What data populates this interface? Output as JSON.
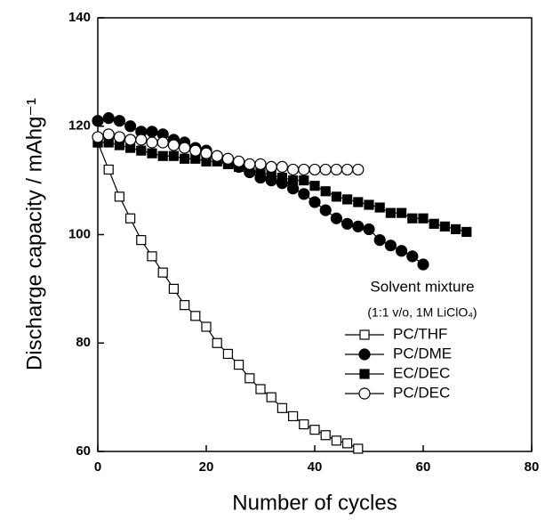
{
  "chart_data": {
    "type": "line",
    "x_label": "Number of cycles",
    "y_label": "Discharge capacity / mAhg⁻¹",
    "legend_title": "Solvent mixture",
    "legend_subtitle": "(1:1 v/o, 1M LiClO₄)",
    "xlim": [
      0,
      80
    ],
    "xticks": [
      0,
      20,
      40,
      60,
      80
    ],
    "ylim": [
      60,
      140
    ],
    "yticks": [
      60,
      80,
      100,
      120,
      140
    ],
    "legend": "lower right",
    "series": [
      {
        "name": "PC/THF",
        "color": "#000000",
        "marker": "square",
        "filled": false,
        "x": [
          0,
          2,
          4,
          6,
          8,
          10,
          12,
          14,
          16,
          18,
          20,
          22,
          24,
          26,
          28,
          30,
          32,
          34,
          36,
          38,
          40,
          42,
          44,
          46,
          48
        ],
        "values": [
          117,
          112,
          107,
          103,
          99,
          96,
          93,
          90,
          87,
          85,
          83,
          80,
          78,
          76,
          73.5,
          71.5,
          70,
          68,
          66.5,
          65,
          64,
          63,
          62,
          61.5,
          60.5
        ]
      },
      {
        "name": "PC/DME",
        "color": "#000000",
        "marker": "circle",
        "filled": true,
        "x": [
          0,
          2,
          4,
          6,
          8,
          10,
          12,
          14,
          16,
          18,
          20,
          22,
          24,
          26,
          28,
          30,
          32,
          34,
          36,
          38,
          40,
          42,
          44,
          46,
          48,
          50,
          52,
          54,
          56,
          58,
          60
        ],
        "values": [
          121,
          121.5,
          121,
          120,
          119,
          119,
          118.5,
          117.5,
          117,
          116,
          115.5,
          114.5,
          113.5,
          112.5,
          111.5,
          110.5,
          110,
          109.5,
          108.5,
          107.5,
          106,
          104.5,
          103,
          102,
          101.5,
          101,
          99,
          98,
          97,
          96,
          94.5
        ]
      },
      {
        "name": "EC/DEC",
        "color": "#000000",
        "marker": "square",
        "filled": true,
        "x": [
          0,
          2,
          4,
          6,
          8,
          10,
          12,
          14,
          16,
          18,
          20,
          22,
          24,
          26,
          28,
          30,
          32,
          34,
          36,
          38,
          40,
          42,
          44,
          46,
          48,
          50,
          52,
          54,
          56,
          58,
          60,
          62,
          64,
          66,
          68
        ],
        "values": [
          117,
          117,
          116.5,
          116,
          115.5,
          115,
          114.5,
          114.5,
          114,
          114,
          113.5,
          113.5,
          113,
          112.5,
          112,
          111.5,
          111,
          110.5,
          110,
          110,
          109,
          108,
          107,
          106.5,
          106,
          105.5,
          105,
          104,
          104,
          103,
          103,
          102,
          101.5,
          101,
          100.5
        ]
      },
      {
        "name": "PC/DEC",
        "color": "#000000",
        "marker": "circle",
        "filled": false,
        "x": [
          0,
          2,
          4,
          6,
          8,
          10,
          12,
          14,
          16,
          18,
          20,
          22,
          24,
          26,
          28,
          30,
          32,
          34,
          36,
          38,
          40,
          42,
          44,
          46,
          48
        ],
        "values": [
          118,
          118.5,
          118,
          117.5,
          117.5,
          117,
          117,
          116.5,
          116,
          115.5,
          115,
          114.5,
          114,
          113.5,
          113,
          113,
          112.5,
          112.5,
          112,
          112,
          112,
          112,
          112,
          112,
          112
        ]
      }
    ]
  }
}
